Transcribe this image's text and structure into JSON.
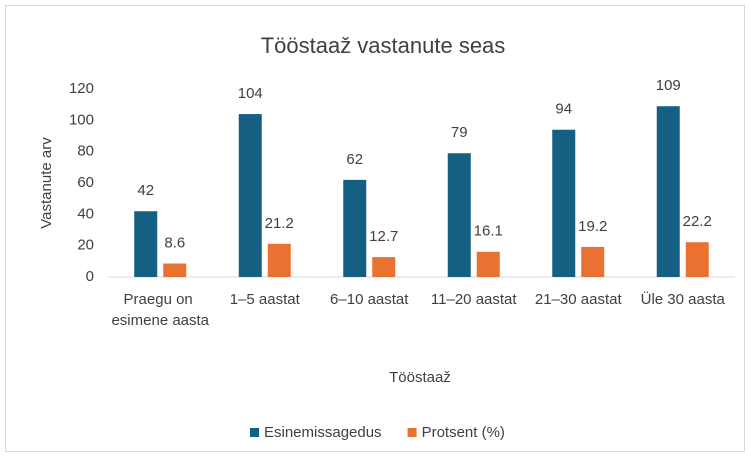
{
  "chart_data": {
    "type": "bar",
    "title": "Tööstaaž vastanute seas",
    "x_label": "Tööstaaž",
    "y_label": "Vastanute arv",
    "categories": [
      "Praegu on esimene aasta",
      "1–5 aastat",
      "6–10 aastat",
      "11–20 aastat",
      "21–30 aastat",
      "Üle 30 aasta"
    ],
    "series": [
      {
        "name": "Esinemissagedus",
        "color": "#156082",
        "values": [
          42,
          104,
          62,
          79,
          94,
          109
        ]
      },
      {
        "name": "Protsent (%)",
        "color": "#e97132",
        "values": [
          8.6,
          21.2,
          12.7,
          16.1,
          19.2,
          22.2
        ]
      }
    ],
    "ylim": [
      0,
      120
    ],
    "yticks": [
      0,
      20,
      40,
      60,
      80,
      100,
      120
    ],
    "grid": false,
    "legend": "bottom"
  }
}
